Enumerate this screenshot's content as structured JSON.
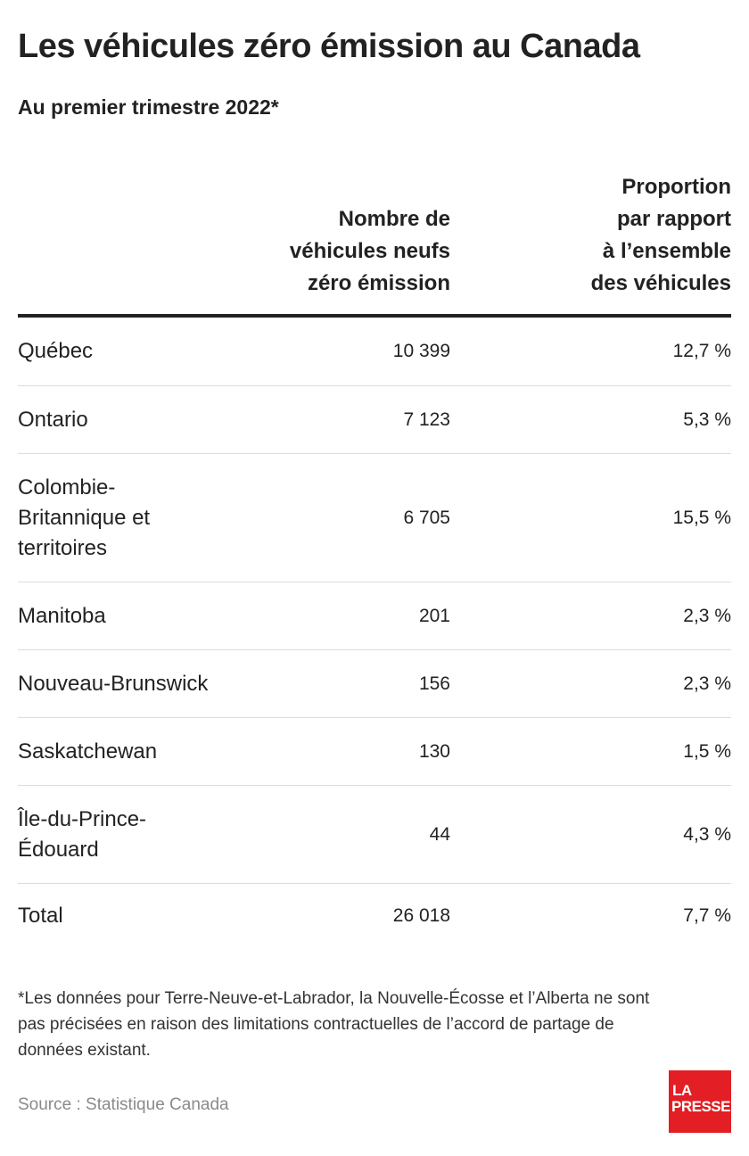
{
  "title": "Les véhicules zéro émission au Canada",
  "subtitle": "Au premier trimestre 2022*",
  "columns": {
    "count_header": "Nombre de\nvéhicules neufs\nzéro émission",
    "share_header": "Proportion\npar rapport\nà l’ensemble\ndes véhicules"
  },
  "rows": [
    {
      "region": "Québec",
      "count": "10 399",
      "share": "12,7 %"
    },
    {
      "region": "Ontario",
      "count": "7 123",
      "share": "5,3 %"
    },
    {
      "region": "Colombie-Britannique et territoires",
      "count": "6 705",
      "share": "15,5 %"
    },
    {
      "region": "Manitoba",
      "count": "201",
      "share": "2,3 %"
    },
    {
      "region": "Nouveau-Brunswick",
      "count": "156",
      "share": "2,3 %"
    },
    {
      "region": "Saskatchewan",
      "count": "130",
      "share": "1,5 %"
    },
    {
      "region": "Île-du-Prince-Édouard",
      "count": "44",
      "share": "4,3 %"
    },
    {
      "region": "Total",
      "count": "26 018",
      "share": "7,7 %"
    }
  ],
  "footnote": "*Les données pour Terre-Neuve-et-Labrador, la Nouvelle-Écosse et l’Alberta ne sont pas précisées en raison des limitations contractuelles de l’accord de partage de données existant.",
  "source": "Source : Statistique Canada",
  "logo": {
    "line1": "LA",
    "line2": "PRESSE",
    "color": "#e31e24"
  },
  "chart_data": {
    "type": "table",
    "title": "Les véhicules zéro émission au Canada",
    "subtitle": "Au premier trimestre 2022*",
    "columns": [
      "",
      "Nombre de véhicules neufs zéro émission",
      "Proportion par rapport à l’ensemble des véhicules"
    ],
    "rows": [
      [
        "Québec",
        10399,
        12.7
      ],
      [
        "Ontario",
        7123,
        5.3
      ],
      [
        "Colombie-Britannique et territoires",
        6705,
        15.5
      ],
      [
        "Manitoba",
        201,
        2.3
      ],
      [
        "Nouveau-Brunswick",
        156,
        2.3
      ],
      [
        "Saskatchewan",
        130,
        1.5
      ],
      [
        "Île-du-Prince-Édouard",
        44,
        4.3
      ],
      [
        "Total",
        26018,
        7.7
      ]
    ]
  }
}
